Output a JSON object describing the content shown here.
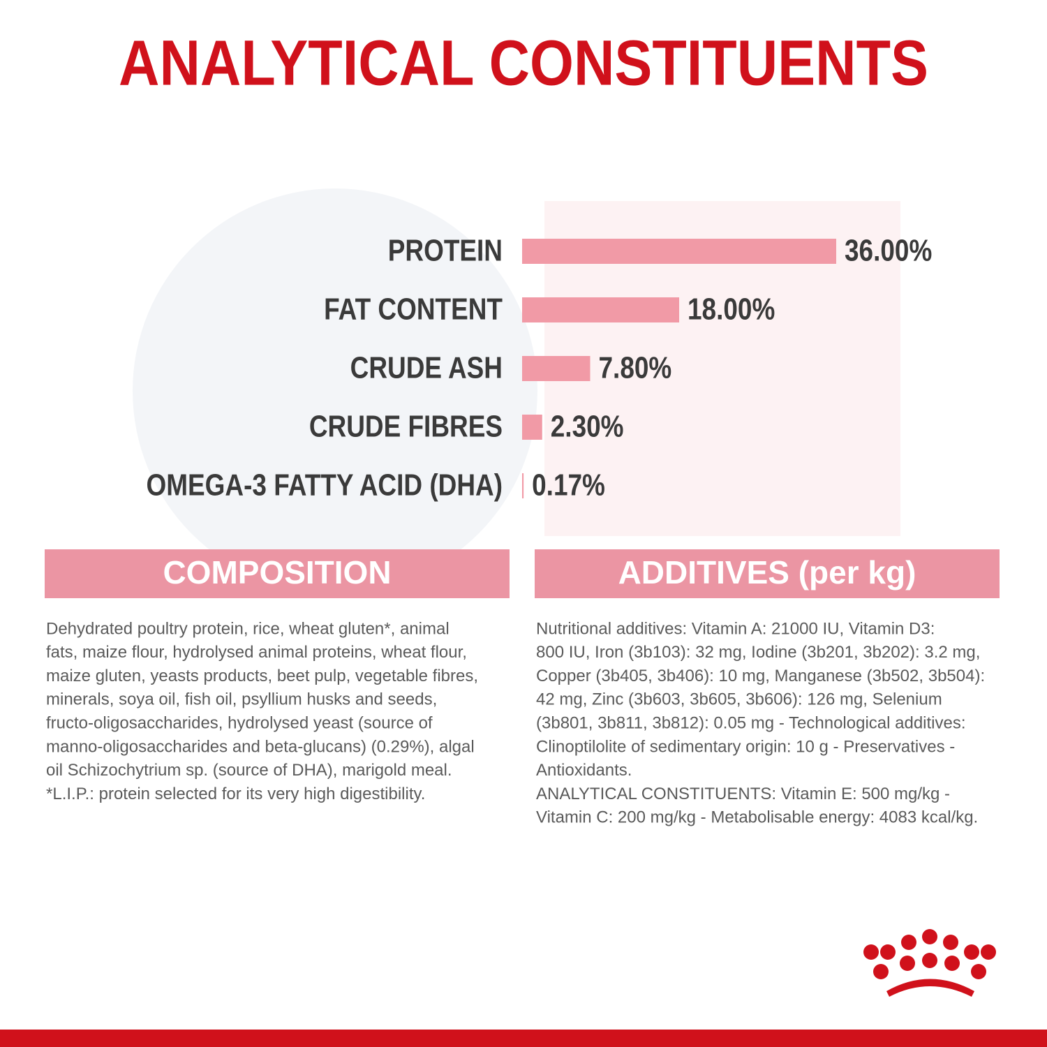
{
  "chart_data": {
    "type": "bar",
    "orientation": "horizontal",
    "title": "ANALYTICAL CONSTITUENTS",
    "categories": [
      "PROTEIN",
      "FAT CONTENT",
      "CRUDE ASH",
      "CRUDE FIBRES",
      "OMEGA-3 FATTY ACID (DHA)"
    ],
    "values": [
      36,
      18,
      7.8,
      2.3,
      0.17
    ],
    "value_labels": [
      "36.00%",
      "18.00%",
      "7.80%",
      "2.30%",
      "0.17%"
    ],
    "color": "#f19aa6"
  },
  "composition": {
    "title": "COMPOSITION",
    "lines": [
      "Dehydrated poultry protein, rice, wheat gluten*, animal",
      "fats, maize flour, hydrolysed animal proteins, wheat flour,",
      "maize gluten, yeasts products, beet pulp, vegetable fibres,",
      "minerals, soya oil, fish oil, psyllium husks and seeds,",
      "fructo-oligosaccharides, hydrolysed yeast (source of",
      "manno-oligosaccharides and beta-glucans) (0.29%), algal",
      "oil Schizochytrium sp. (source of DHA), marigold meal.",
      "*L.I.P.: protein selected for its very high digestibility."
    ]
  },
  "additives": {
    "title": "ADDITIVES (per kg)",
    "lines": [
      "Nutritional additives: Vitamin A: 21000 IU, Vitamin D3:",
      "800 IU, Iron (3b103): 32 mg, Iodine (3b201, 3b202): 3.2 mg,",
      "Copper (3b405, 3b406): 10 mg, Manganese (3b502, 3b504):",
      "42 mg, Zinc (3b603, 3b605, 3b606): 126 mg, Selenium",
      "(3b801, 3b811, 3b812): 0.05 mg - Technological additives:",
      "Clinoptilolite of sedimentary origin: 10 g - Preservatives -",
      "Antioxidants.",
      "ANALYTICAL CONSTITUENTS: Vitamin E: 500 mg/kg -",
      "Vitamin C: 200 mg/kg - Metabolisable energy: 4083 kcal/kg."
    ]
  }
}
